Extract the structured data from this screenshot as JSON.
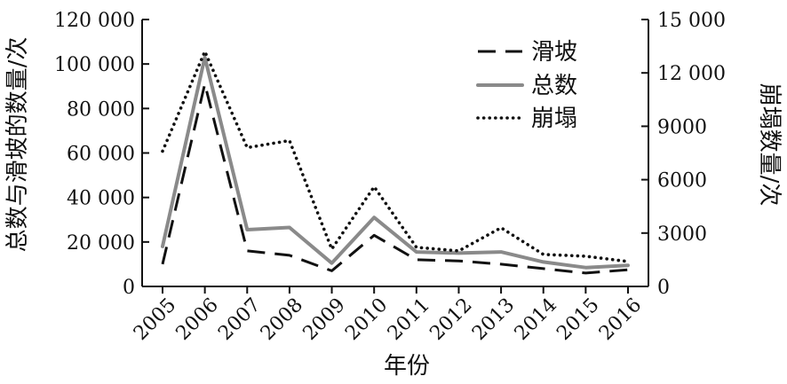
{
  "chart_data": {
    "type": "line",
    "x": [
      "2005",
      "2006",
      "2007",
      "2008",
      "2009",
      "2010",
      "2011",
      "2012",
      "2013",
      "2014",
      "2015",
      "2016"
    ],
    "xlabel": "年份",
    "ylabel_left": "总数与滑坡的数量/次",
    "ylabel_right": "崩塌数量/次",
    "ylim_left": [
      0,
      120000
    ],
    "ylim_right": [
      0,
      15000
    ],
    "yticks_left": [
      0,
      20000,
      40000,
      60000,
      80000,
      100000,
      120000
    ],
    "yticks_left_labels": [
      "0",
      "20 000",
      "40 000",
      "60 000",
      "80 000",
      "100 000",
      "120 000"
    ],
    "yticks_right": [
      0,
      3000,
      6000,
      9000,
      12000,
      15000
    ],
    "yticks_right_labels": [
      "0",
      "3000",
      "6000",
      "9000",
      "12 000",
      "15 000"
    ],
    "legend_position": "top-right",
    "grid": false,
    "series": [
      {
        "name": "滑坡",
        "axis": "left",
        "style": "dashed",
        "color": "#111111",
        "values": [
          10000,
          91000,
          16000,
          14000,
          7000,
          23000,
          12000,
          11500,
          10000,
          8000,
          6000,
          7500
        ]
      },
      {
        "name": "总数",
        "axis": "left",
        "style": "solid",
        "color": "#8a8a8a",
        "values": [
          18000,
          103000,
          25500,
          26500,
          10500,
          31000,
          15500,
          15000,
          15500,
          11000,
          8500,
          9500
        ]
      },
      {
        "name": "崩塌",
        "axis": "right",
        "style": "dotted",
        "color": "#111111",
        "values": [
          7600,
          13200,
          7800,
          8200,
          2100,
          5600,
          2200,
          2000,
          3300,
          1800,
          1700,
          1400
        ]
      }
    ]
  }
}
